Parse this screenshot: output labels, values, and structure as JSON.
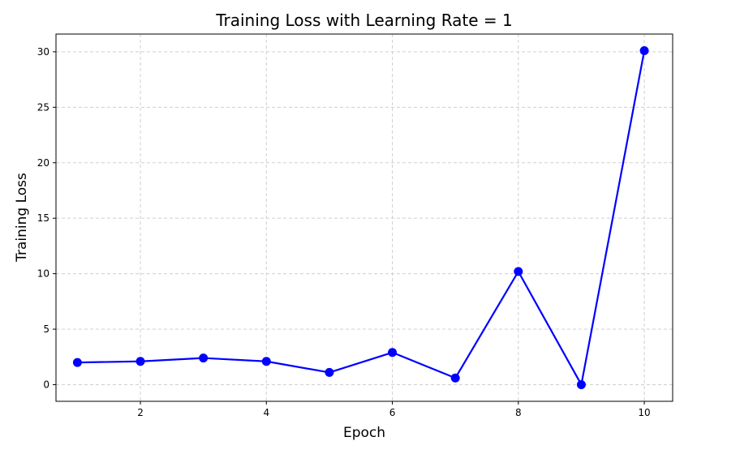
{
  "chart_data": {
    "type": "line",
    "title": "Training Loss with Learning Rate = 1",
    "xlabel": "Epoch",
    "ylabel": "Training Loss",
    "x": [
      1,
      2,
      3,
      4,
      5,
      6,
      7,
      8,
      9,
      10
    ],
    "series": [
      {
        "values": [
          2.0,
          2.1,
          2.4,
          2.1,
          1.1,
          2.9,
          0.6,
          10.2,
          0.0,
          30.1
        ]
      }
    ],
    "xlim": [
      0.66,
      10.45
    ],
    "ylim": [
      -1.5,
      31.6
    ],
    "xticks": [
      2,
      4,
      6,
      8,
      10
    ],
    "yticks": [
      0,
      5,
      10,
      15,
      20,
      25,
      30
    ],
    "grid": true,
    "color": "#0000ff",
    "marker": "circle"
  }
}
